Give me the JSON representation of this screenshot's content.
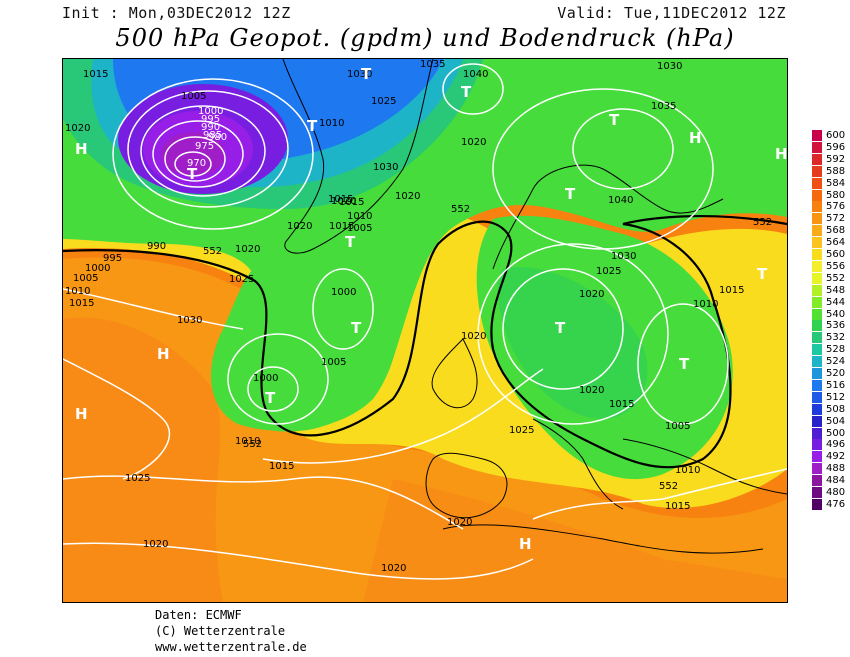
{
  "header": {
    "init": "Init : Mon,03DEC2012 12Z",
    "valid": "Valid: Tue,11DEC2012 12Z",
    "title": "500 hPa Geopot. (gpdm) und Bodendruck (hPa)"
  },
  "legend": {
    "values": [
      "600",
      "596",
      "592",
      "588",
      "584",
      "580",
      "576",
      "572",
      "568",
      "564",
      "560",
      "556",
      "552",
      "548",
      "544",
      "540",
      "536",
      "532",
      "528",
      "524",
      "520",
      "516",
      "512",
      "508",
      "504",
      "500",
      "496",
      "492",
      "488",
      "484",
      "480",
      "476"
    ],
    "colors": [
      "#c8004b",
      "#d2143c",
      "#dc2828",
      "#e63c1e",
      "#f05014",
      "#f5690f",
      "#f7820f",
      "#f89614",
      "#f9aa19",
      "#fac31e",
      "#fadc1e",
      "#f5ee2d",
      "#e6f528",
      "#b4f028",
      "#82eb28",
      "#50e132",
      "#32d250",
      "#28c878",
      "#1ec8a0",
      "#1eb4c8",
      "#1e96dc",
      "#1e78f0",
      "#1e5ae6",
      "#1e3cdc",
      "#2823c8",
      "#501ed2",
      "#781ee1",
      "#961ee6",
      "#a01ec8",
      "#8c14a0",
      "#6e0a82",
      "#500064"
    ]
  },
  "pressure_labels": [
    "1015",
    "1005",
    "1000",
    "995",
    "990",
    "985",
    "980",
    "975",
    "970",
    "1020",
    "1025",
    "1010",
    "1030",
    "1035",
    "1040",
    "990",
    "995",
    "1000",
    "1005",
    "1010",
    "1015",
    "1030",
    "1020",
    "1025",
    "1000",
    "1005",
    "1000",
    "1010",
    "1015",
    "1025",
    "1020",
    "1010",
    "1020",
    "1015",
    "1030",
    "1025",
    "1020",
    "1010",
    "1015",
    "1020",
    "1020",
    "1005",
    "1010",
    "1015",
    "1025",
    "1020",
    "1020",
    "1035",
    "1040",
    "1030",
    "1020",
    "1015",
    "1020",
    "1015",
    "1030",
    "1005",
    "1015",
    "1020"
  ],
  "contour_552_labels": [
    "552",
    "552",
    "552",
    "552",
    "552"
  ],
  "pressure_centers": [
    "H",
    "T",
    "T",
    "T",
    "T",
    "T",
    "T",
    "T",
    "H",
    "H",
    "H",
    "T",
    "T",
    "T",
    "H",
    "T",
    "T",
    "H"
  ],
  "footer": {
    "line1": "Daten: ECMWF",
    "line2": "(C) Wetterzentrale",
    "line3": "www.wetterzentrale.de"
  },
  "colors": {
    "violet_low": "#a01ee6",
    "blue": "#1e78f0",
    "cyan": "#1eb4c8",
    "green": "#46dc3c",
    "yellow": "#fadc1e",
    "orange": "#f7820f",
    "deep_orange": "#f05014"
  }
}
